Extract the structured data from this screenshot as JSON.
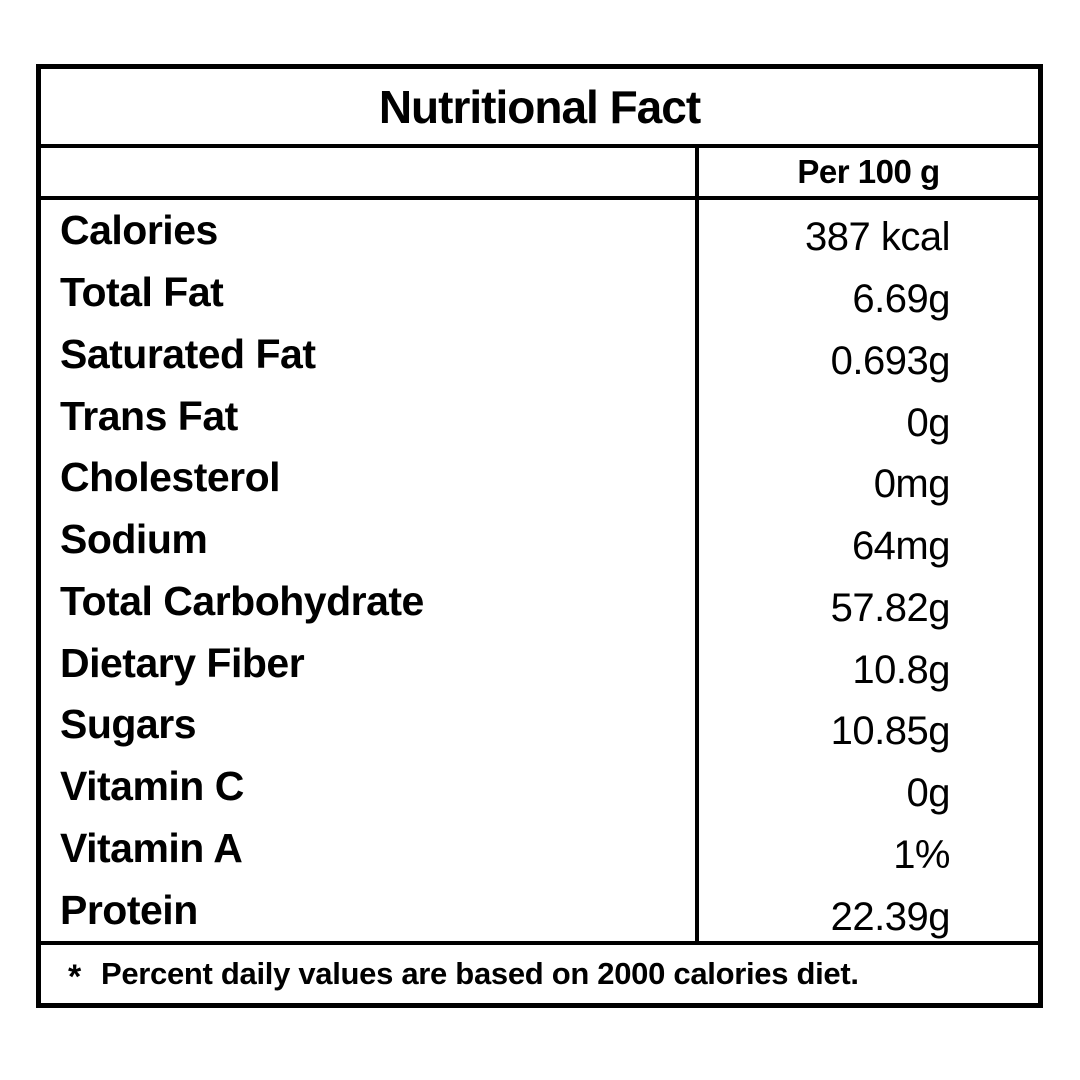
{
  "title": "Nutritional Fact",
  "column_header": "Per 100 g",
  "rows": [
    {
      "label": "Calories",
      "value": "387 kcal"
    },
    {
      "label": "Total Fat",
      "value": "6.69g"
    },
    {
      "label": "Saturated Fat",
      "value": "0.693g"
    },
    {
      "label": "Trans Fat",
      "value": "0g"
    },
    {
      "label": "Cholesterol",
      "value": "0mg"
    },
    {
      "label": "Sodium",
      "value": "64mg"
    },
    {
      "label": "Total Carbohydrate",
      "value": "57.82g"
    },
    {
      "label": "Dietary Fiber",
      "value": "10.8g"
    },
    {
      "label": "Sugars",
      "value": "10.85g"
    },
    {
      "label": "Vitamin C",
      "value": "0g"
    },
    {
      "label": "Vitamin A",
      "value": "1%"
    },
    {
      "label": "Protein",
      "value": "22.39g"
    }
  ],
  "footnote": {
    "marker": "*",
    "text": "Percent daily values are based on 2000 calories diet."
  },
  "colors": {
    "text": "#000000",
    "border": "#000000",
    "background": "#ffffff"
  }
}
